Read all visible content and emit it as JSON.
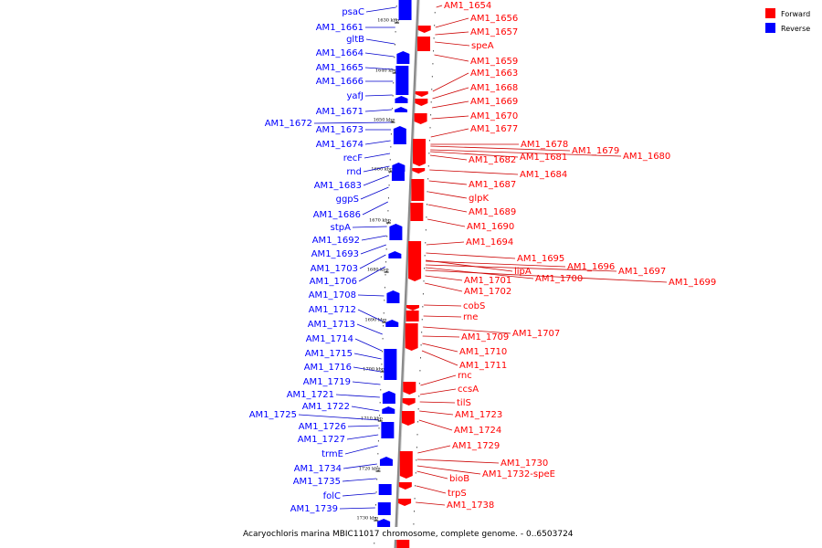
{
  "caption": "Acaryochloris marina MBIC11017 chromosome, complete genome. - 0..6503724",
  "legend": [
    {
      "label": "Forward",
      "color": "#ff0000"
    },
    {
      "label": "Reverse",
      "color": "#0000ff"
    }
  ],
  "colors": {
    "forward": "#ff0000",
    "reverse": "#0000ff",
    "forward_line": "#cc0000",
    "reverse_line": "#0000cc",
    "backbone": "#888888"
  },
  "ticks": [
    "1630 kbp",
    "1640 kbp",
    "1650 kbp",
    "1660 kbp",
    "1670 kbp",
    "1680 kbp",
    "1690 kbp",
    "1700 kbp",
    "1710 kbp",
    "1720 kbp",
    "1730 kbp"
  ],
  "reverse_genes": [
    "psaC",
    "AM1_1661",
    "gltB",
    "AM1_1664",
    "AM1_1665",
    "AM1_1666",
    "yafJ",
    "AM1_1671",
    "AM1_1672",
    "AM1_1673",
    "AM1_1674",
    "recF",
    "rnd",
    "AM1_1683",
    "ggpS",
    "AM1_1686",
    "stpA",
    "AM1_1692",
    "AM1_1693",
    "AM1_1703",
    "AM1_1706",
    "AM1_1708",
    "AM1_1712",
    "AM1_1713",
    "AM1_1714",
    "AM1_1715",
    "AM1_1716",
    "AM1_1719",
    "AM1_1721",
    "AM1_1722",
    "AM1_1725",
    "AM1_1726",
    "AM1_1727",
    "trmE",
    "AM1_1734",
    "AM1_1735",
    "folC",
    "AM1_1739"
  ],
  "forward_genes": [
    "AM1_1654",
    "AM1_1656",
    "AM1_1657",
    "speA",
    "AM1_1659",
    "AM1_1663",
    "AM1_1668",
    "AM1_1669",
    "AM1_1670",
    "AM1_1677",
    "AM1_1678",
    "AM1_1679",
    "AM1_1680",
    "AM1_1681",
    "AM1_1682",
    "AM1_1684",
    "AM1_1687",
    "glpK",
    "AM1_1689",
    "AM1_1690",
    "AM1_1694",
    "AM1_1695",
    "lipA",
    "AM1_1696",
    "AM1_1697",
    "AM1_1700",
    "AM1_1699",
    "AM1_1701",
    "AM1_1702",
    "cobS",
    "rne",
    "AM1_1707",
    "AM1_1709",
    "AM1_1710",
    "AM1_1711",
    "rnc",
    "ccsA",
    "tilS",
    "AM1_1723",
    "AM1_1724",
    "AM1_1729",
    "AM1_1730",
    "AM1_1732-speE",
    "bioB",
    "trpS",
    "AM1_1738"
  ]
}
